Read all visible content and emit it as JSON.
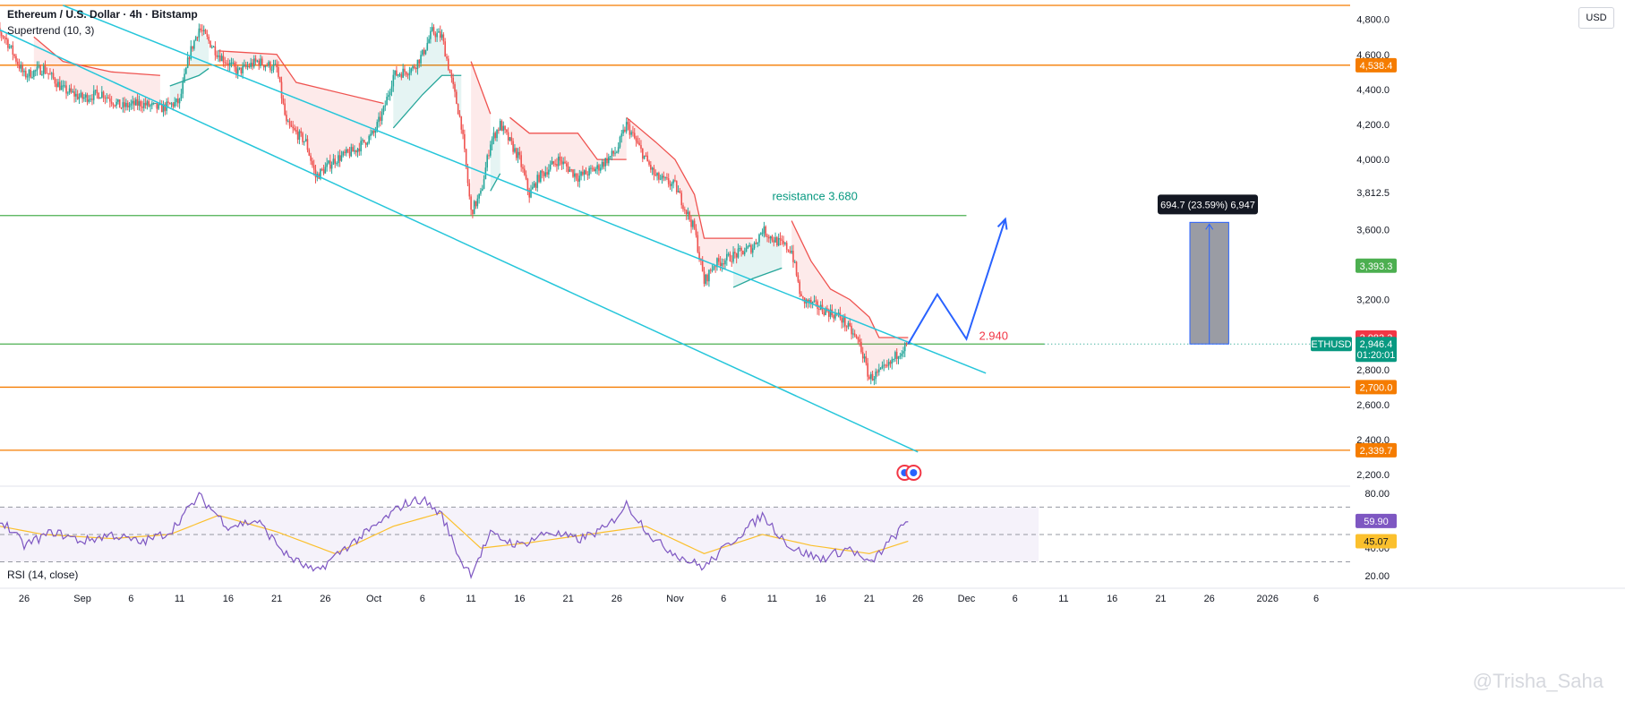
{
  "header": {
    "title": "Ethereum / U.S. Dollar · 4h · Bitstamp",
    "indicator": "Supertrend (10, 3)",
    "rsi_title": "RSI (14, close)",
    "currency": "USD",
    "watermark": "@Trisha_Saha"
  },
  "colors": {
    "up": "#26a69a",
    "down": "#ef5350",
    "channel": "#26c6da",
    "orange_level": "#f57c00",
    "green_level": "#4caf50",
    "projection": "#2962ff",
    "rsi_line": "#7e57c2",
    "rsi_ma": "#fbc02d",
    "ethusd_tag": "#089981"
  },
  "chart_data": [
    {
      "type": "candlestick",
      "title": "Ethereum / U.S. Dollar · 4h · Bitstamp",
      "ylim": [
        2150,
        4880
      ],
      "y_ticks": [
        "4,800.0",
        "4,600.0",
        "4,400.0",
        "4,200.0",
        "4,000.0",
        "3,812.5",
        "3,600.0",
        "3,200.0",
        "2,800.0",
        "2,600.0",
        "2,400.0",
        "2,200.0"
      ],
      "y_tick_values": [
        4800,
        4600,
        4400,
        4200,
        4000,
        3812.5,
        3600,
        3200,
        2800,
        2600,
        2400,
        2200
      ],
      "x_tick_labels": [
        "26",
        "Sep",
        "6",
        "11",
        "16",
        "21",
        "26",
        "Oct",
        "6",
        "11",
        "16",
        "21",
        "26",
        "Nov",
        "6",
        "11",
        "16",
        "21",
        "26",
        "Dec",
        "6",
        "11",
        "16",
        "21",
        "26",
        "2026",
        "6"
      ],
      "x_tick_dates": [
        "2025-08-26",
        "2025-09-01",
        "2025-09-06",
        "2025-09-11",
        "2025-09-16",
        "2025-09-21",
        "2025-09-26",
        "2025-10-01",
        "2025-10-06",
        "2025-10-11",
        "2025-10-16",
        "2025-10-21",
        "2025-10-26",
        "2025-11-01",
        "2025-11-06",
        "2025-11-11",
        "2025-11-16",
        "2025-11-21",
        "2025-11-26",
        "2025-12-01",
        "2025-12-06",
        "2025-12-11",
        "2025-12-16",
        "2025-12-21",
        "2025-12-26",
        "2026-01-01",
        "2026-01-06"
      ],
      "price_path": [
        [
          "2025-08-22",
          4780
        ],
        [
          "2025-08-24",
          4700
        ],
        [
          "2025-08-26",
          4480
        ],
        [
          "2025-08-28",
          4520
        ],
        [
          "2025-08-30",
          4400
        ],
        [
          "2025-09-01",
          4350
        ],
        [
          "2025-09-03",
          4380
        ],
        [
          "2025-09-05",
          4300
        ],
        [
          "2025-09-07",
          4320
        ],
        [
          "2025-09-09",
          4290
        ],
        [
          "2025-09-11",
          4330
        ],
        [
          "2025-09-12",
          4600
        ],
        [
          "2025-09-13",
          4750
        ],
        [
          "2025-09-15",
          4600
        ],
        [
          "2025-09-17",
          4500
        ],
        [
          "2025-09-19",
          4560
        ],
        [
          "2025-09-21",
          4520
        ],
        [
          "2025-09-22",
          4200
        ],
        [
          "2025-09-24",
          4100
        ],
        [
          "2025-09-25",
          3900
        ],
        [
          "2025-09-27",
          4000
        ],
        [
          "2025-09-29",
          4050
        ],
        [
          "2025-10-01",
          4150
        ],
        [
          "2025-10-02",
          4280
        ],
        [
          "2025-10-03",
          4480
        ],
        [
          "2025-10-05",
          4520
        ],
        [
          "2025-10-06",
          4600
        ],
        [
          "2025-10-07",
          4730
        ],
        [
          "2025-10-08",
          4700
        ],
        [
          "2025-10-09",
          4450
        ],
        [
          "2025-10-10",
          4200
        ],
        [
          "2025-10-11",
          3700
        ],
        [
          "2025-10-12",
          3800
        ],
        [
          "2025-10-13",
          4100
        ],
        [
          "2025-10-14",
          4200
        ],
        [
          "2025-10-16",
          4000
        ],
        [
          "2025-10-17",
          3800
        ],
        [
          "2025-10-18",
          3900
        ],
        [
          "2025-10-20",
          4000
        ],
        [
          "2025-10-22",
          3900
        ],
        [
          "2025-10-24",
          3950
        ],
        [
          "2025-10-26",
          4050
        ],
        [
          "2025-10-27",
          4200
        ],
        [
          "2025-10-28",
          4100
        ],
        [
          "2025-10-30",
          3900
        ],
        [
          "2025-11-01",
          3850
        ],
        [
          "2025-11-03",
          3600
        ],
        [
          "2025-11-04",
          3300
        ],
        [
          "2025-11-05",
          3400
        ],
        [
          "2025-11-07",
          3450
        ],
        [
          "2025-11-09",
          3500
        ],
        [
          "2025-11-10",
          3600
        ],
        [
          "2025-11-11",
          3550
        ],
        [
          "2025-11-13",
          3480
        ],
        [
          "2025-11-14",
          3200
        ],
        [
          "2025-11-16",
          3150
        ],
        [
          "2025-11-18",
          3100
        ],
        [
          "2025-11-20",
          2950
        ],
        [
          "2025-11-21",
          2750
        ],
        [
          "2025-11-22",
          2780
        ],
        [
          "2025-11-23",
          2820
        ],
        [
          "2025-11-24",
          2900
        ],
        [
          "2025-11-25",
          2946.4
        ]
      ],
      "supertrend_segments": [
        {
          "trend": "down",
          "points": [
            [
              "2025-08-27",
              4700
            ],
            [
              "2025-08-30",
              4560
            ],
            [
              "2025-09-04",
              4500
            ],
            [
              "2025-09-09",
              4480
            ]
          ]
        },
        {
          "trend": "up",
          "points": [
            [
              "2025-09-10",
              4420
            ],
            [
              "2025-09-13",
              4480
            ],
            [
              "2025-09-14",
              4520
            ]
          ]
        },
        {
          "trend": "down",
          "points": [
            [
              "2025-09-15",
              4620
            ],
            [
              "2025-09-21",
              4600
            ],
            [
              "2025-09-23",
              4440
            ],
            [
              "2025-10-02",
              4320
            ]
          ]
        },
        {
          "trend": "up",
          "points": [
            [
              "2025-10-03",
              4180
            ],
            [
              "2025-10-06",
              4370
            ],
            [
              "2025-10-08",
              4480
            ],
            [
              "2025-10-10",
              4480
            ]
          ]
        },
        {
          "trend": "down",
          "points": [
            [
              "2025-10-11",
              4560
            ],
            [
              "2025-10-13",
              4260
            ]
          ]
        },
        {
          "trend": "up",
          "points": [
            [
              "2025-10-13",
              3820
            ],
            [
              "2025-10-14",
              3920
            ]
          ]
        },
        {
          "trend": "down",
          "points": [
            [
              "2025-10-15",
              4240
            ],
            [
              "2025-10-17",
              4150
            ],
            [
              "2025-10-22",
              4150
            ],
            [
              "2025-10-24",
              4000
            ],
            [
              "2025-10-27",
              4000
            ]
          ]
        },
        {
          "trend": "down",
          "points": [
            [
              "2025-10-27",
              4240
            ],
            [
              "2025-10-30",
              4100
            ],
            [
              "2025-11-01",
              4000
            ],
            [
              "2025-11-03",
              3800
            ],
            [
              "2025-11-04",
              3550
            ],
            [
              "2025-11-09",
              3550
            ]
          ]
        },
        {
          "trend": "up",
          "points": [
            [
              "2025-11-07",
              3270
            ],
            [
              "2025-11-09",
              3320
            ],
            [
              "2025-11-12",
              3380
            ]
          ]
        },
        {
          "trend": "down",
          "points": [
            [
              "2025-11-13",
              3650
            ],
            [
              "2025-11-15",
              3420
            ],
            [
              "2025-11-17",
              3260
            ],
            [
              "2025-11-19",
              3200
            ],
            [
              "2025-11-21",
              3100
            ],
            [
              "2025-11-22",
              2983.3
            ],
            [
              "2025-11-25",
              2983.3
            ]
          ]
        }
      ],
      "channel_lines": [
        {
          "name": "upper",
          "from": [
            "2025-08-30",
            4880
          ],
          "to": [
            "2025-12-03",
            2780
          ]
        },
        {
          "name": "lower",
          "from": [
            "2025-08-18",
            4880
          ],
          "to": [
            "2025-11-26",
            2330
          ]
        }
      ],
      "horizontal_levels": [
        {
          "value": 4880,
          "color": "orange",
          "tag": ""
        },
        {
          "value": 4538.4,
          "color": "orange",
          "tag": "4,538.4"
        },
        {
          "value": 3680,
          "color": "green",
          "tag": "",
          "label": "resistance 3.680",
          "until": "2025-12-01"
        },
        {
          "value": 2946.4,
          "color": "green",
          "tag": "",
          "until": "2025-12-09",
          "dotted_after": true
        },
        {
          "value": 2700.0,
          "color": "orange",
          "tag": "2,700.0"
        },
        {
          "value": 2339.7,
          "color": "orange",
          "tag": "2,339.7"
        }
      ],
      "price_tags": [
        {
          "value": 3393.3,
          "text": "3,393.3",
          "color": "green"
        },
        {
          "value": 2983.3,
          "text": "2,983.3",
          "color": "red"
        }
      ],
      "last_price": {
        "symbol": "ETHUSD",
        "value": 2946.4,
        "text": "2,946.4",
        "countdown": "01:20:01"
      },
      "projection_path": [
        [
          "2025-11-25",
          2946.4
        ],
        [
          "2025-11-28",
          3230
        ],
        [
          "2025-12-01",
          2975
        ],
        [
          "2025-12-05",
          3660
        ]
      ],
      "projection_label": {
        "text": "2.940",
        "at": [
          "2025-12-01",
          2940
        ]
      },
      "measure_box": {
        "from_date": "2025-12-24",
        "to_date": "2025-12-28",
        "low": 2946.4,
        "high": 3641.1,
        "label": "694.7 (23.59%) 6,947"
      },
      "event_marker_date": "2025-11-25"
    },
    {
      "type": "line",
      "title": "RSI (14, close)",
      "ylim": [
        12,
        84
      ],
      "y_ticks": [
        "80.00",
        "40.00",
        "20.00"
      ],
      "y_tick_values": [
        80,
        40,
        20
      ],
      "bands": {
        "upper": 70,
        "mid": 50,
        "lower": 30
      },
      "series": [
        {
          "name": "RSI",
          "last": 59.9,
          "last_text": "59.90",
          "path": [
            [
              "2025-08-22",
              62
            ],
            [
              "2025-08-24",
              58
            ],
            [
              "2025-08-26",
              42
            ],
            [
              "2025-08-29",
              52
            ],
            [
              "2025-09-01",
              45
            ],
            [
              "2025-09-04",
              50
            ],
            [
              "2025-09-07",
              44
            ],
            [
              "2025-09-10",
              52
            ],
            [
              "2025-09-13",
              78
            ],
            [
              "2025-09-16",
              56
            ],
            [
              "2025-09-19",
              60
            ],
            [
              "2025-09-22",
              35
            ],
            [
              "2025-09-25",
              22
            ],
            [
              "2025-09-28",
              40
            ],
            [
              "2025-10-01",
              55
            ],
            [
              "2025-10-04",
              72
            ],
            [
              "2025-10-06",
              76
            ],
            [
              "2025-10-08",
              64
            ],
            [
              "2025-10-10",
              30
            ],
            [
              "2025-10-11",
              22
            ],
            [
              "2025-10-13",
              50
            ],
            [
              "2025-10-16",
              42
            ],
            [
              "2025-10-19",
              52
            ],
            [
              "2025-10-22",
              46
            ],
            [
              "2025-10-25",
              55
            ],
            [
              "2025-10-27",
              72
            ],
            [
              "2025-10-30",
              45
            ],
            [
              "2025-11-02",
              32
            ],
            [
              "2025-11-04",
              26
            ],
            [
              "2025-11-07",
              46
            ],
            [
              "2025-11-10",
              64
            ],
            [
              "2025-11-13",
              40
            ],
            [
              "2025-11-16",
              32
            ],
            [
              "2025-11-19",
              40
            ],
            [
              "2025-11-21",
              28
            ],
            [
              "2025-11-23",
              44
            ],
            [
              "2025-11-25",
              59.9
            ]
          ]
        },
        {
          "name": "RSI-based MA",
          "last": 45.07,
          "last_text": "45.07",
          "path": [
            [
              "2025-08-22",
              58
            ],
            [
              "2025-08-28",
              50
            ],
            [
              "2025-09-04",
              47
            ],
            [
              "2025-09-10",
              50
            ],
            [
              "2025-09-15",
              64
            ],
            [
              "2025-09-21",
              52
            ],
            [
              "2025-09-27",
              36
            ],
            [
              "2025-10-03",
              56
            ],
            [
              "2025-10-08",
              66
            ],
            [
              "2025-10-12",
              40
            ],
            [
              "2025-10-17",
              44
            ],
            [
              "2025-10-23",
              50
            ],
            [
              "2025-10-29",
              56
            ],
            [
              "2025-11-04",
              36
            ],
            [
              "2025-11-10",
              50
            ],
            [
              "2025-11-15",
              42
            ],
            [
              "2025-11-21",
              36
            ],
            [
              "2025-11-25",
              45.07
            ]
          ]
        }
      ]
    }
  ]
}
